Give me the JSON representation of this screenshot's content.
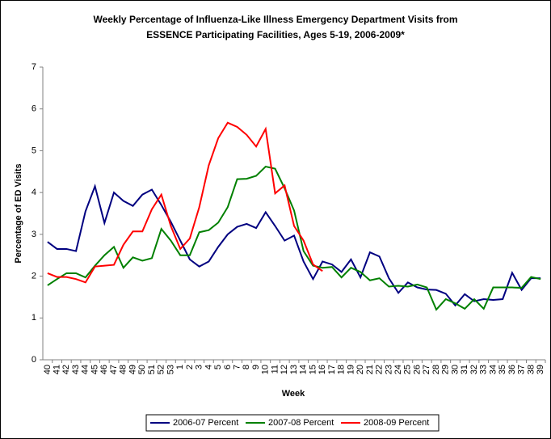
{
  "chart_data": {
    "type": "line",
    "title": "Weekly Percentage of Influenza-Like Illness Emergency Department Visits from ESSENCE Participating Facilities, Ages 5-19, 2006-2009*",
    "xlabel": "Week",
    "ylabel": "Percentage of ED Visits",
    "categories": [
      "40",
      "41",
      "42",
      "43",
      "44",
      "45",
      "46",
      "47",
      "48",
      "49",
      "50",
      "51",
      "52",
      "53",
      "1",
      "2",
      "3",
      "4",
      "5",
      "6",
      "7",
      "8",
      "9",
      "10",
      "11",
      "12",
      "13",
      "14",
      "15",
      "16",
      "17",
      "18",
      "19",
      "20",
      "21",
      "22",
      "23",
      "24",
      "25",
      "26",
      "27",
      "28",
      "29",
      "30",
      "31",
      "32",
      "33",
      "34",
      "35",
      "36",
      "37",
      "38",
      "39"
    ],
    "ylim": [
      0,
      7
    ],
    "yticks": [
      0,
      1,
      2,
      3,
      4,
      5,
      6,
      7
    ],
    "legend": "bottom",
    "series": [
      {
        "name": "2006-07 Percent",
        "color": "#000080",
        "values": [
          2.82,
          2.65,
          2.65,
          2.6,
          3.55,
          4.15,
          3.27,
          4.0,
          3.8,
          3.68,
          3.95,
          4.07,
          3.7,
          3.3,
          2.85,
          2.4,
          2.23,
          2.35,
          2.7,
          3.0,
          3.18,
          3.25,
          3.15,
          3.53,
          3.2,
          2.85,
          2.97,
          2.35,
          1.93,
          2.35,
          2.28,
          2.1,
          2.4,
          1.97,
          2.57,
          2.47,
          1.95,
          1.6,
          1.85,
          1.73,
          1.68,
          1.67,
          1.58,
          1.3,
          1.57,
          1.4,
          1.45,
          1.43,
          1.45,
          2.08,
          1.67,
          1.95,
          1.95
        ]
      },
      {
        "name": "2007-08 Percent",
        "color": "#008000",
        "values": [
          1.78,
          1.93,
          2.07,
          2.07,
          1.97,
          2.25,
          2.5,
          2.7,
          2.2,
          2.45,
          2.37,
          2.43,
          3.13,
          2.85,
          2.5,
          2.5,
          3.05,
          3.1,
          3.28,
          3.65,
          4.32,
          4.33,
          4.4,
          4.62,
          4.57,
          4.1,
          3.57,
          2.6,
          2.25,
          2.2,
          2.22,
          1.97,
          2.2,
          2.1,
          1.9,
          1.95,
          1.75,
          1.77,
          1.75,
          1.8,
          1.73,
          1.2,
          1.45,
          1.35,
          1.22,
          1.45,
          1.22,
          1.73,
          1.73,
          1.73,
          1.72,
          1.98,
          1.93
        ]
      },
      {
        "name": "2008-09 Percent",
        "color": "#ff0000",
        "values": [
          2.07,
          1.98,
          1.98,
          1.93,
          1.85,
          2.23,
          2.25,
          2.27,
          2.75,
          3.07,
          3.07,
          3.6,
          3.95,
          3.2,
          2.65,
          2.9,
          3.65,
          4.65,
          5.3,
          5.67,
          5.57,
          5.38,
          5.1,
          5.52,
          3.98,
          4.17,
          3.2,
          2.85,
          2.28,
          2.12,
          null,
          null,
          null,
          null,
          null,
          null,
          null,
          null,
          null,
          null,
          null,
          null,
          null,
          null,
          null,
          null,
          null,
          null,
          null,
          null,
          null,
          null,
          null
        ]
      }
    ]
  }
}
